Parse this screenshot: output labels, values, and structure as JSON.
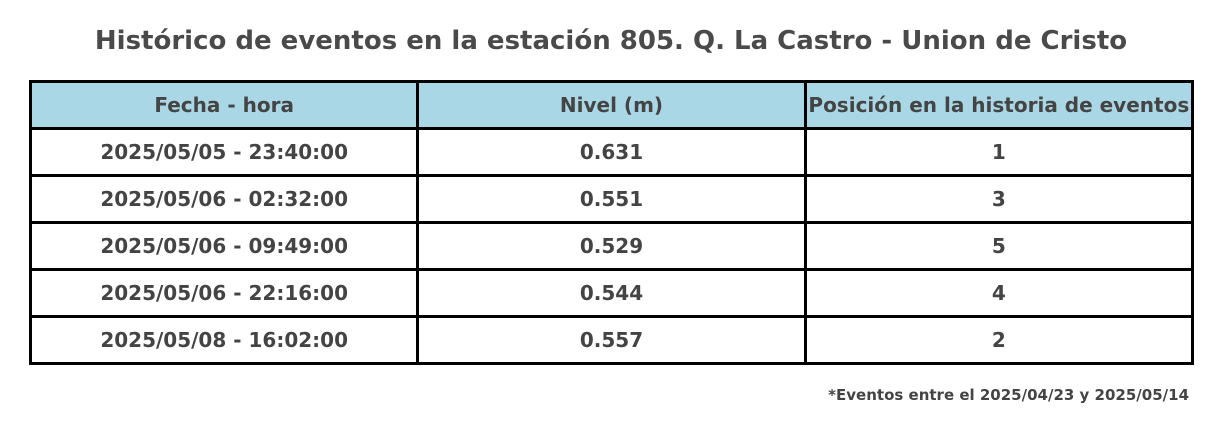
{
  "title": "Histórico de eventos en la estación 805. Q. La Castro - Union de Cristo",
  "table": {
    "header": [
      "Fecha - hora",
      "Nivel (m)",
      "Posición en la historia de eventos"
    ],
    "rows": [
      [
        "2025/05/05 - 23:40:00",
        "0.631",
        "1"
      ],
      [
        "2025/05/06 - 02:32:00",
        "0.551",
        "3"
      ],
      [
        "2025/05/06 - 09:49:00",
        "0.529",
        "5"
      ],
      [
        "2025/05/06 - 22:16:00",
        "0.544",
        "4"
      ],
      [
        "2025/05/08 - 16:02:00",
        "0.557",
        "2"
      ]
    ]
  },
  "footnote": "*Eventos entre el 2025/04/23 y 2025/05/14"
}
